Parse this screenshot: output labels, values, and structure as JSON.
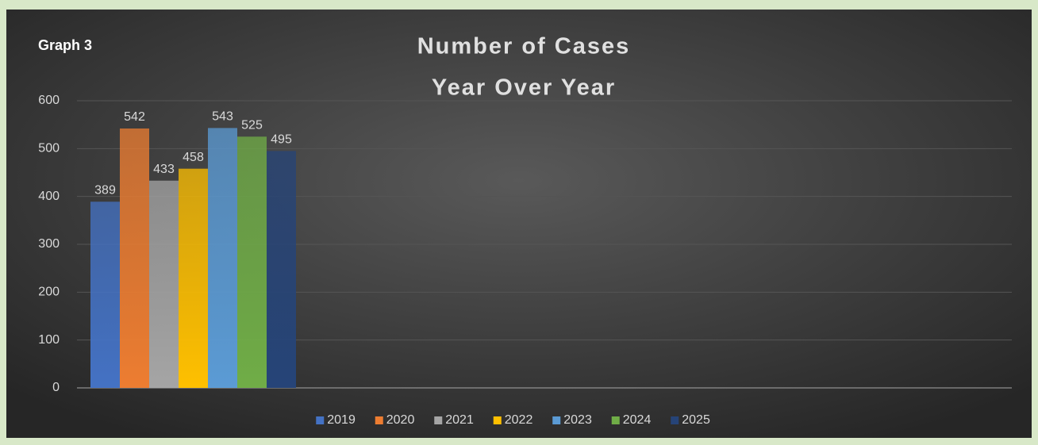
{
  "chart_data": {
    "type": "bar",
    "annotation": "Graph 3",
    "title": [
      "Number of Cases",
      "Year Over Year"
    ],
    "categories": [
      null
    ],
    "series": [
      {
        "name": "2019",
        "color": "#4472c4",
        "values": [
          389
        ]
      },
      {
        "name": "2020",
        "color": "#ed7d31",
        "values": [
          542
        ]
      },
      {
        "name": "2021",
        "color": "#a5a5a5",
        "values": [
          433
        ]
      },
      {
        "name": "2022",
        "color": "#ffc000",
        "values": [
          458
        ]
      },
      {
        "name": "2023",
        "color": "#5b9bd5",
        "values": [
          543
        ]
      },
      {
        "name": "2024",
        "color": "#70ad47",
        "values": [
          525
        ]
      },
      {
        "name": "2025",
        "color": "#264478",
        "values": [
          495
        ]
      }
    ],
    "ylim": [
      0,
      600
    ],
    "yticks": [
      0,
      100,
      200,
      300,
      400,
      500,
      600
    ],
    "grid": true,
    "legend": "bottom"
  }
}
